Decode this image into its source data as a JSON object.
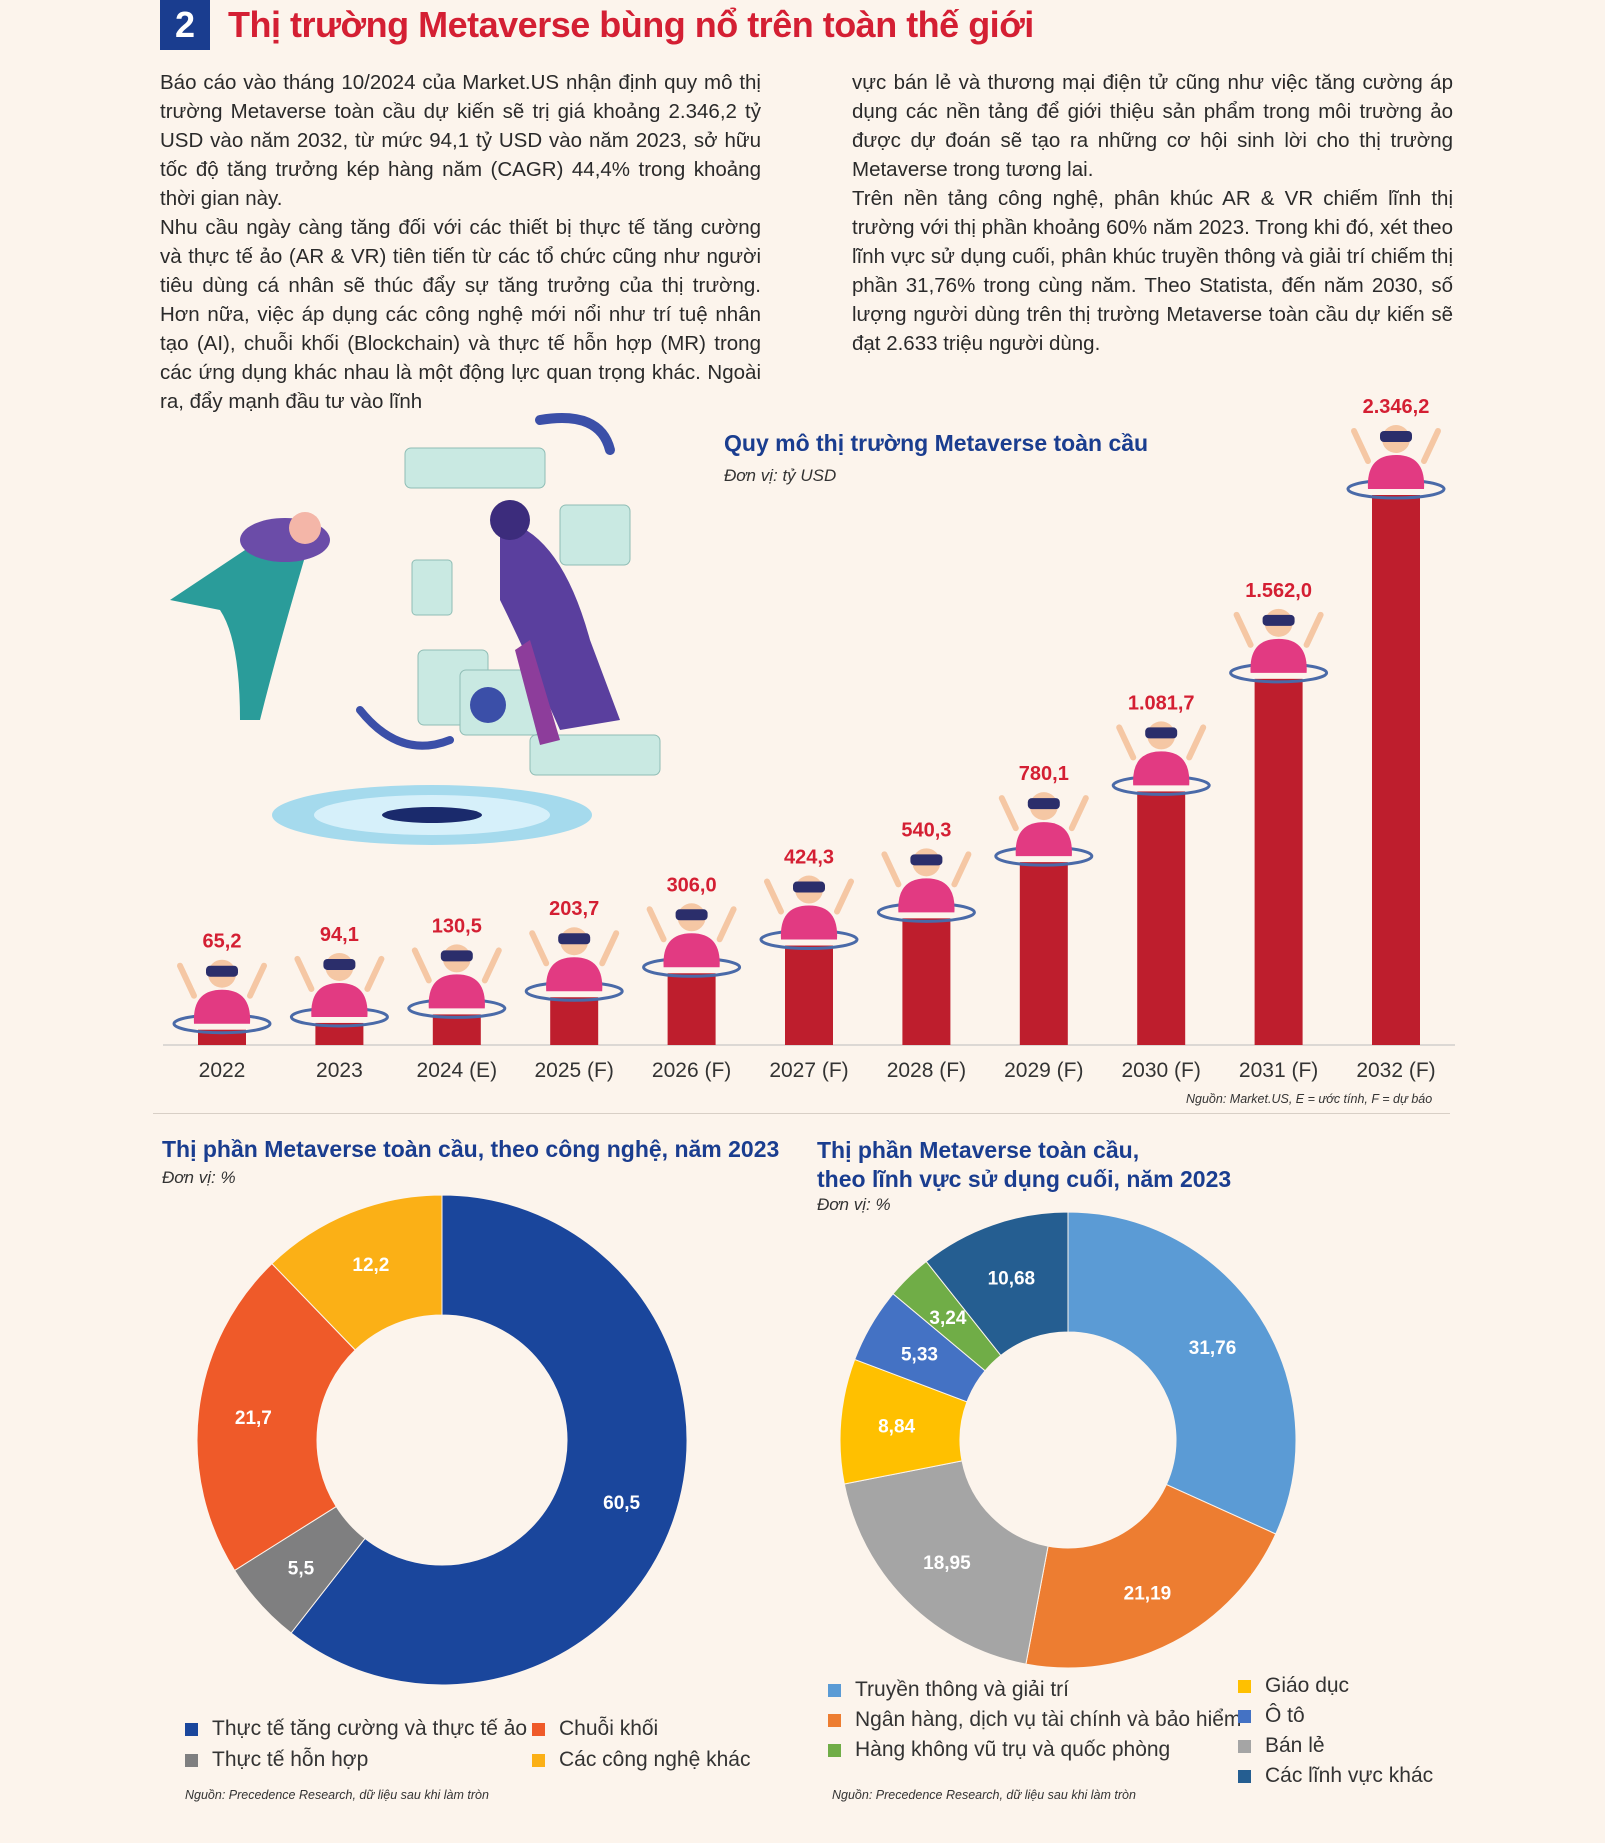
{
  "section": {
    "number": "2",
    "title": "Thị trường Metaverse bùng nổ trên toàn thế giới"
  },
  "text_left": [
    "Báo cáo vào tháng 10/2024 của Market.US nhận định quy mô thị trường Metaverse toàn cầu dự kiến sẽ trị giá khoảng 2.346,2 tỷ USD vào năm 2032, từ mức 94,1 tỷ USD vào năm 2023, sở hữu tốc độ tăng trưởng kép hàng năm (CAGR) 44,4% trong khoảng thời gian này.",
    "Nhu cầu ngày càng tăng đối với các thiết bị thực tế tăng cường và thực tế ảo (AR & VR) tiên tiến từ các tổ chức cũng như người tiêu dùng cá nhân sẽ thúc đẩy sự tăng trưởng của thị trường. Hơn nữa, việc áp dụng các công nghệ mới nổi như trí tuệ nhân tạo (AI), chuỗi khối (Blockchain) và thực tế hỗn hợp (MR) trong các ứng dụng khác nhau là một động lực quan trọng khác. Ngoài ra, đẩy mạnh đầu tư vào lĩnh"
  ],
  "text_right": [
    "vực bán lẻ và thương mại điện tử cũng như việc tăng cường áp dụng các nền tảng để giới thiệu sản phẩm trong môi trường ảo được dự đoán sẽ tạo ra những cơ hội sinh lời cho thị trường Metaverse trong tương lai.",
    "Trên nền tảng công nghệ, phân khúc AR & VR chiếm lĩnh thị trường với thị phần khoảng 60% năm 2023. Trong khi đó, xét theo lĩnh vực sử dụng cuối, phân khúc truyền thông và giải trí chiếm thị phần 31,76% trong cùng năm. Theo Statista, đến năm 2030, số lượng người dùng trên thị trường Metaverse toàn cầu dự kiến sẽ đạt 2.633 triệu người dùng."
  ],
  "colors": {
    "bar": "#be1e2d",
    "label": "#d41f33",
    "title_blue": "#1a3d8f",
    "avatar_pink": "#e23a82"
  },
  "chart_data": [
    {
      "type": "bar",
      "title": "Quy mô thị trường Metaverse toàn cầu",
      "unit": "Đơn vị: tỷ USD",
      "categories": [
        "2022",
        "2023",
        "2024 (E)",
        "2025 (F)",
        "2026 (F)",
        "2027 (F)",
        "2028 (F)",
        "2029 (F)",
        "2030 (F)",
        "2031 (F)",
        "2032 (F)"
      ],
      "values": [
        65.2,
        94.1,
        130.5,
        203.7,
        306.0,
        424.3,
        540.3,
        780.1,
        1081.7,
        1562.0,
        2346.2
      ],
      "value_labels": [
        "65,2",
        "94,1",
        "130,5",
        "203,7",
        "306,0",
        "424,3",
        "540,3",
        "780,1",
        "1.081,7",
        "1.562,0",
        "2.346,2"
      ],
      "source": "Nguồn: Market.US, E = ước tính, F = dự báo"
    },
    {
      "type": "pie",
      "title": "Thị phần Metaverse toàn cầu, theo công nghệ, năm 2023",
      "unit": "Đơn vị: %",
      "slices": [
        {
          "name": "Thực tế tăng cường và thực tế ảo",
          "value": 60.5,
          "label": "60,5",
          "color": "#1a469c"
        },
        {
          "name": "Thực tế hỗn hợp",
          "value": 5.5,
          "label": "5,5",
          "color": "#7f7f80"
        },
        {
          "name": "Chuỗi khối",
          "value": 21.7,
          "label": "21,7",
          "color": "#ef5a29"
        },
        {
          "name": "Các công nghệ khác",
          "value": 12.2,
          "label": "12,2",
          "color": "#fbb016"
        }
      ],
      "legend_order": [
        0,
        2,
        1,
        3
      ],
      "source": "Nguồn: Precedence Research, dữ liệu sau khi làm tròn"
    },
    {
      "type": "pie",
      "title_lines": [
        "Thị phần Metaverse toàn cầu,",
        "theo lĩnh vực sử dụng cuối, năm 2023"
      ],
      "unit": "Đơn vị: %",
      "slices": [
        {
          "name": "Truyền thông và giải trí",
          "value": 31.76,
          "label": "31,76",
          "color": "#5b9bd5"
        },
        {
          "name": "Ngân hàng, dịch vụ tài chính và bảo hiểm",
          "value": 21.19,
          "label": "21,19",
          "color": "#ed7d31"
        },
        {
          "name": "Bán lẻ",
          "value": 18.95,
          "label": "18,95",
          "color": "#a5a5a5"
        },
        {
          "name": "Giáo dục",
          "value": 8.84,
          "label": "8,84",
          "color": "#ffc000"
        },
        {
          "name": "Ô tô",
          "value": 5.33,
          "label": "5,33",
          "color": "#4472c4"
        },
        {
          "name": "Hàng không vũ trụ và quốc phòng",
          "value": 3.24,
          "label": "3,24",
          "color": "#70ad47"
        },
        {
          "name": "Các lĩnh vực khác",
          "value": 10.68,
          "label": "10,68",
          "color": "#255e91"
        }
      ],
      "legend_order": [
        0,
        1,
        5,
        3,
        4,
        2,
        6
      ],
      "source": "Nguồn: Precedence Research, dữ liệu sau khi làm tròn"
    }
  ]
}
